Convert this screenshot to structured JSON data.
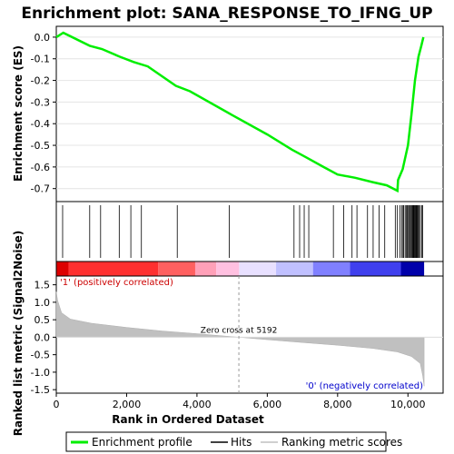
{
  "chart_data": {
    "type": "line",
    "title": "Enrichment plot: SANA_RESPONSE_TO_IFNG_UP",
    "es_panel": {
      "ylabel": "Enrichment score (ES)",
      "ylim": [
        -0.76,
        0.05
      ],
      "yticks": [
        "0.0",
        "-0.1",
        "-0.2",
        "-0.3",
        "-0.4",
        "-0.5",
        "-0.6",
        "-0.7"
      ],
      "ytick_values": [
        0.0,
        -0.1,
        -0.2,
        -0.3,
        -0.4,
        -0.5,
        -0.6,
        -0.7
      ],
      "series_name": "Enrichment profile",
      "color": "#00ee00",
      "points": [
        [
          0,
          0.0
        ],
        [
          200,
          0.02
        ],
        [
          950,
          -0.04
        ],
        [
          1300,
          -0.055
        ],
        [
          1800,
          -0.09
        ],
        [
          2200,
          -0.115
        ],
        [
          2600,
          -0.135
        ],
        [
          3400,
          -0.225
        ],
        [
          3800,
          -0.25
        ],
        [
          5000,
          -0.36
        ],
        [
          6000,
          -0.45
        ],
        [
          6700,
          -0.52
        ],
        [
          7100,
          -0.555
        ],
        [
          7600,
          -0.6
        ],
        [
          8000,
          -0.635
        ],
        [
          8500,
          -0.65
        ],
        [
          9000,
          -0.67
        ],
        [
          9400,
          -0.685
        ],
        [
          9700,
          -0.71
        ],
        [
          9720,
          -0.66
        ],
        [
          9850,
          -0.61
        ],
        [
          10000,
          -0.5
        ],
        [
          10100,
          -0.36
        ],
        [
          10200,
          -0.2
        ],
        [
          10300,
          -0.09
        ],
        [
          10380,
          -0.04
        ],
        [
          10440,
          0.0
        ]
      ]
    },
    "hits": [
      180,
      950,
      1260,
      1790,
      2120,
      2420,
      3440,
      4920,
      6760,
      6920,
      7050,
      7180,
      7880,
      8170,
      8410,
      8550,
      8850,
      9010,
      9180,
      9340,
      9640,
      9700,
      9770,
      9820,
      9860,
      9880,
      9920,
      9950,
      9980,
      10010,
      10040,
      10060,
      10090,
      10110,
      10130,
      10150,
      10170,
      10190,
      10210,
      10230,
      10250,
      10270,
      10290,
      10320,
      10350,
      10390,
      10420
    ],
    "heatmap_colors": [
      [
        0,
        "#dd0000"
      ],
      [
        350,
        "#ff3030"
      ],
      [
        2900,
        "#ff6060"
      ],
      [
        3950,
        "#ffa0b8"
      ],
      [
        4550,
        "#ffc0e0"
      ],
      [
        5200,
        "#e8e0ff"
      ],
      [
        6250,
        "#c0c0ff"
      ],
      [
        7300,
        "#8080ff"
      ],
      [
        8350,
        "#4040ee"
      ],
      [
        9800,
        "#0000aa"
      ]
    ],
    "metric_panel": {
      "ylabel": "Ranked list metric (Signal2Noise)",
      "ylim": [
        -1.6,
        1.75
      ],
      "yticks": [
        "1.5",
        "1.0",
        "0.5",
        "0.0",
        "-0.5",
        "-1.0",
        "-1.5"
      ],
      "ytick_values": [
        1.5,
        1.0,
        0.5,
        0.0,
        -0.5,
        -1.0,
        -1.5
      ],
      "series_name": "Ranking metric scores",
      "points": [
        [
          0,
          1.3
        ],
        [
          40,
          1.05
        ],
        [
          150,
          0.7
        ],
        [
          400,
          0.52
        ],
        [
          1000,
          0.4
        ],
        [
          2000,
          0.28
        ],
        [
          3000,
          0.18
        ],
        [
          4000,
          0.1
        ],
        [
          5192,
          0.0
        ],
        [
          6000,
          -0.07
        ],
        [
          7000,
          -0.15
        ],
        [
          8000,
          -0.23
        ],
        [
          9000,
          -0.32
        ],
        [
          9700,
          -0.42
        ],
        [
          10100,
          -0.55
        ],
        [
          10350,
          -0.75
        ],
        [
          10420,
          -1.1
        ],
        [
          10460,
          -1.4
        ]
      ]
    },
    "xlabel": "Rank in Ordered Dataset",
    "xlim": [
      0,
      11000
    ],
    "xticks": [
      "0",
      "2,000",
      "4,000",
      "6,000",
      "8,000",
      "10,000"
    ],
    "xtick_values": [
      0,
      2000,
      4000,
      6000,
      8000,
      10000
    ],
    "n_genes": 10460,
    "zero_cross": 5192,
    "zero_cross_label": "Zero cross at 5192",
    "positive_label": "'1' (positively correlated)",
    "negative_label": "'0' (negatively correlated)",
    "legend": [
      {
        "label": "Enrichment profile",
        "color": "#00ee00"
      },
      {
        "label": "Hits",
        "color": "#000000"
      },
      {
        "label": "Ranking metric scores",
        "color": "#c0c0c0"
      }
    ],
    "legend_position": "bottom"
  }
}
